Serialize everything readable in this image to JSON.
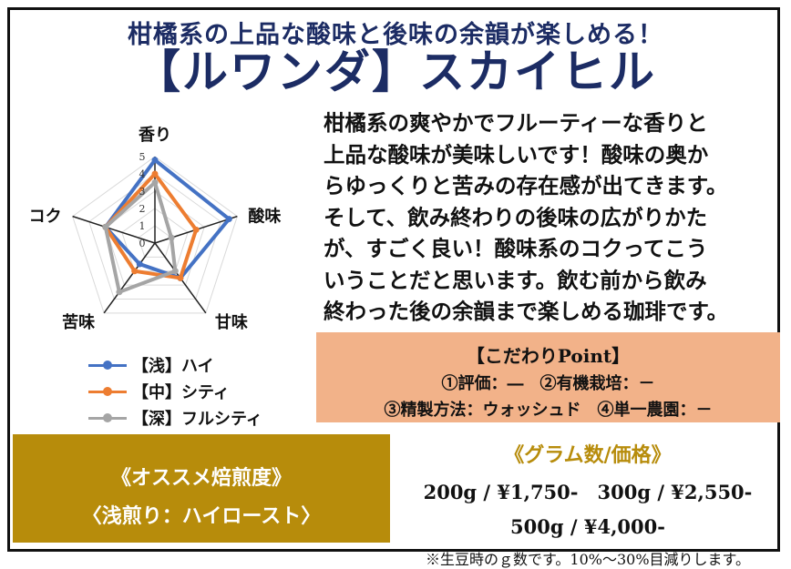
{
  "header": {
    "tagline": "柑橘系の上品な酸味と後味の余韻が楽しめる！",
    "title": "【ルワンダ】スカイヒル"
  },
  "description": [
    "柑橘系の爽やかでフルーティーな香りと",
    "上品な酸味が美味しいです！酸味の奥か",
    "らゆっくりと苦みの存在感が出てきます。",
    "そして、飲み終わりの後味の広がりかた",
    "が、すごく良い！酸味系のコクってこう",
    "いうことだと思います。飲む前から飲み",
    "終わった後の余韻まで楽しめる珈琲です。"
  ],
  "chart_data": {
    "type": "radar",
    "axes": [
      "香り",
      "酸味",
      "甘味",
      "苦味",
      "コク"
    ],
    "scale_labels": [
      "0",
      "1",
      "2",
      "3",
      "4",
      "5"
    ],
    "rmin": 0,
    "rmax": 5,
    "series": [
      {
        "name": "【浅】ハイ",
        "color": "#4472c4",
        "values": [
          4.8,
          4.5,
          2.5,
          1.5,
          3.0
        ]
      },
      {
        "name": "【中】シティ",
        "color": "#ed7d31",
        "values": [
          4.0,
          2.5,
          2.5,
          2.0,
          3.0
        ]
      },
      {
        "name": "【深】フルシティ",
        "color": "#a5a5a5",
        "values": [
          3.5,
          1.0,
          2.0,
          3.5,
          3.0
        ]
      }
    ]
  },
  "point": {
    "heading": "【こだわりPoint】",
    "line1": "①評価：―　②有機栽培：－",
    "line2": "③精製方法：ウォッシュド　④単一農園：－"
  },
  "recommend": {
    "heading": "《オススメ焙煎度》",
    "value": "〈浅煎り：ハイロースト〉"
  },
  "price": {
    "heading": "《グラム数/価格》",
    "line1": "200g / ¥1,750-　300g / ¥2,550-",
    "line2": "500g / ¥4,000-",
    "note": "※生豆時のｇ数です。10%～30%目減りします。"
  }
}
